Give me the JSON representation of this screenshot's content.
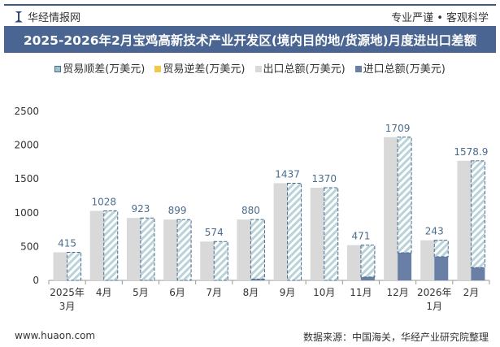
{
  "header": {
    "brand": "华经情报网",
    "slogan": "专业严谨 • 客观科学"
  },
  "footer": {
    "url": "www.huaon.com",
    "source": "数据来源：中国海关，华经产业研究院整理"
  },
  "colors": {
    "export": "#d9d9d9",
    "import": "#6a7fa6",
    "surplus": "#9fc3c9",
    "deficit": "#f0c94a",
    "title_bg": "#4a6591",
    "label": "#4a6c8c"
  },
  "chart_data": {
    "type": "bar",
    "title": "2025-2026年2月宝鸡高新技术产业开发区(境内目的地/货源地)月度进出口差额",
    "legend": [
      "贸易顺差(万美元)",
      "贸易逆差(万美元)",
      "出口总额(万美元)",
      "进口总额(万美元)"
    ],
    "legend_position": "top",
    "categories": [
      [
        "2025年",
        "3月"
      ],
      [
        "4月"
      ],
      [
        "5月"
      ],
      [
        "6月"
      ],
      [
        "7月"
      ],
      [
        "8月"
      ],
      [
        "9月"
      ],
      [
        "10月"
      ],
      [
        "11月"
      ],
      [
        "12月"
      ],
      [
        "2026年",
        "1月"
      ],
      [
        "2月"
      ]
    ],
    "ylim": [
      0,
      2500
    ],
    "yticks": [
      0,
      500,
      1000,
      1500,
      2000,
      2500
    ],
    "series": [
      {
        "name": "贸易顺差(万美元)",
        "values": [
          415,
          1028,
          923,
          899,
          574,
          880,
          1437,
          1370,
          471,
          1709,
          243,
          1578.9
        ],
        "labels": [
          "415",
          "1028",
          "923",
          "899",
          "574",
          "880",
          "1437",
          "1370",
          "471",
          "1709",
          "243",
          "1578.9"
        ]
      },
      {
        "name": "出口总额(万美元)",
        "values": [
          415,
          1028,
          923,
          899,
          574,
          900,
          1437,
          1370,
          521,
          2118,
          593,
          1769
        ]
      },
      {
        "name": "进口总额(万美元)",
        "values": [
          0,
          0,
          0,
          0,
          0,
          20,
          0,
          0,
          50,
          409,
          350,
          190
        ]
      }
    ]
  }
}
